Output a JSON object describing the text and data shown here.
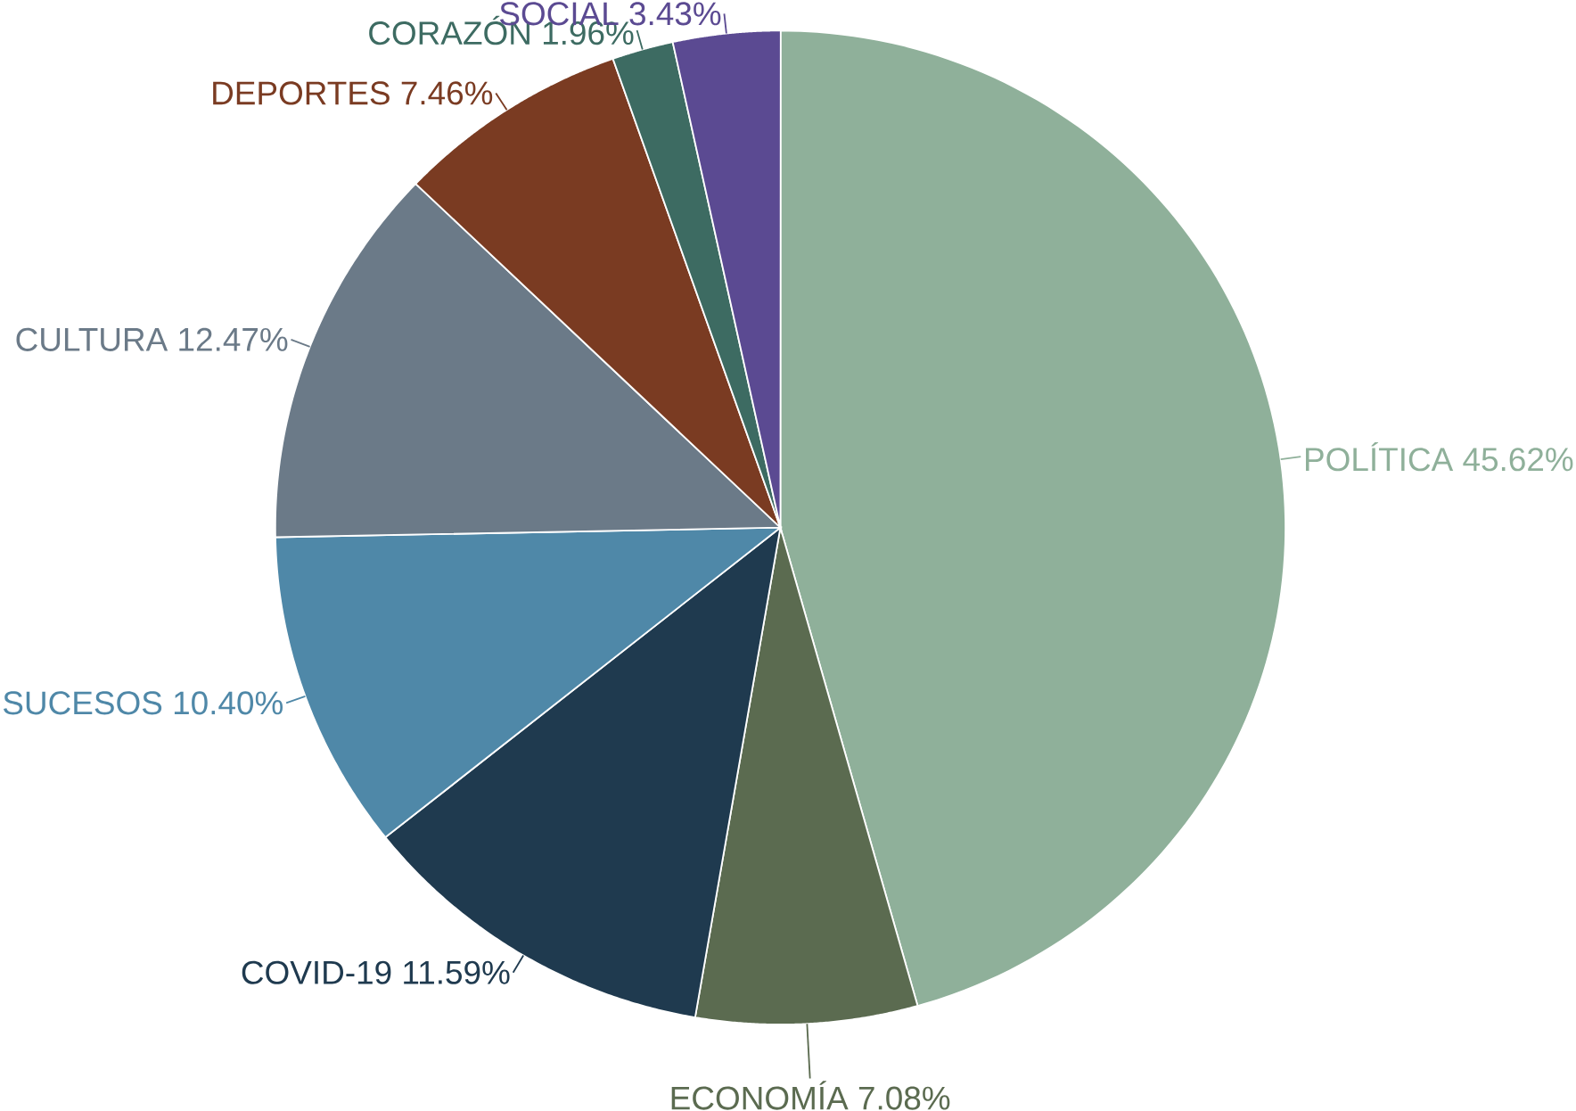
{
  "chart_data": {
    "type": "pie",
    "categories": [
      "POLÍTICA",
      "ECONOMÍA",
      "COVID-19",
      "SUCESOS",
      "CULTURA",
      "DEPORTES",
      "CORAZÓN",
      "SOCIAL"
    ],
    "values": [
      45.62,
      7.08,
      11.59,
      10.4,
      12.47,
      7.46,
      1.96,
      3.43
    ],
    "colors": [
      "#8fb09a",
      "#5b6b50",
      "#1f3a4f",
      "#4f88a8",
      "#6b7a88",
      "#7a3b22",
      "#3d6b62",
      "#5b4a92"
    ],
    "value_labels": [
      "45.62%",
      "7.08%",
      "11.59%",
      "10.40%",
      "12.47%",
      "7.46%",
      "1.96%",
      "3.43%"
    ]
  }
}
